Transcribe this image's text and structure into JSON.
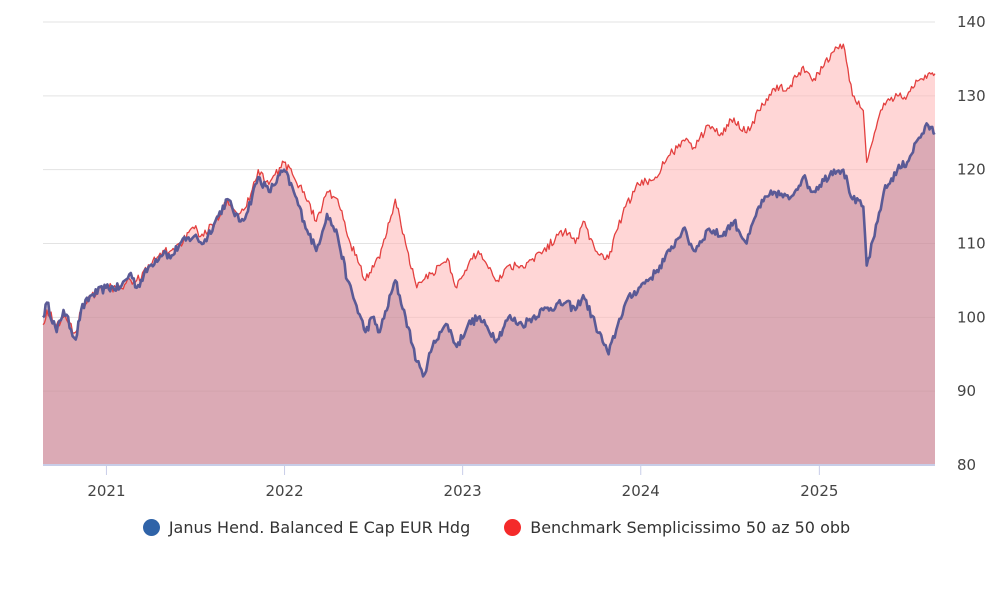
{
  "chart_data": {
    "type": "area",
    "title": "",
    "xlabel": "",
    "ylabel": "",
    "x_range": [
      "2020-08-24",
      "2025-08-26"
    ],
    "ylim": [
      80,
      140
    ],
    "y_ticks": [
      80,
      90,
      100,
      110,
      120,
      130,
      140
    ],
    "x_ticks": [
      {
        "label": "2021",
        "date": "2021-01-01"
      },
      {
        "label": "2022",
        "date": "2022-01-01"
      },
      {
        "label": "2023",
        "date": "2023-01-01"
      },
      {
        "label": "2024",
        "date": "2024-01-01"
      },
      {
        "label": "2025",
        "date": "2025-01-01"
      }
    ],
    "y_axis_side": "right",
    "grid": true,
    "legend_position": "bottom",
    "series": [
      {
        "name": "Janus Hend. Balanced E Cap EUR Hdg",
        "color": "#2f63a8",
        "line_color": "#5a5a96",
        "points": [
          [
            "2020-08-24",
            100
          ],
          [
            "2020-09-01",
            102
          ],
          [
            "2020-09-21",
            98
          ],
          [
            "2020-10-05",
            101
          ],
          [
            "2020-10-30",
            97
          ],
          [
            "2020-11-10",
            101
          ],
          [
            "2020-12-01",
            103
          ],
          [
            "2020-12-31",
            104
          ],
          [
            "2021-01-29",
            104
          ],
          [
            "2021-02-20",
            106
          ],
          [
            "2021-03-04",
            104
          ],
          [
            "2021-03-31",
            107
          ],
          [
            "2021-04-30",
            109
          ],
          [
            "2021-05-12",
            108
          ],
          [
            "2021-06-01",
            110
          ],
          [
            "2021-06-30",
            111
          ],
          [
            "2021-07-19",
            110
          ],
          [
            "2021-08-12",
            113
          ],
          [
            "2021-09-06",
            116
          ],
          [
            "2021-09-30",
            113
          ],
          [
            "2021-10-15",
            114
          ],
          [
            "2021-11-08",
            119
          ],
          [
            "2021-11-30",
            117
          ],
          [
            "2021-12-31",
            120
          ],
          [
            "2022-01-20",
            117
          ],
          [
            "2022-02-10",
            113
          ],
          [
            "2022-03-07",
            109
          ],
          [
            "2022-03-29",
            114
          ],
          [
            "2022-04-20",
            111
          ],
          [
            "2022-05-10",
            105
          ],
          [
            "2022-06-16",
            98
          ],
          [
            "2022-06-30",
            100
          ],
          [
            "2022-07-15",
            98
          ],
          [
            "2022-08-16",
            105
          ],
          [
            "2022-09-06",
            100
          ],
          [
            "2022-09-29",
            94
          ],
          [
            "2022-10-12",
            92
          ],
          [
            "2022-10-31",
            96
          ],
          [
            "2022-11-15",
            98
          ],
          [
            "2022-12-01",
            99
          ],
          [
            "2022-12-20",
            96
          ],
          [
            "2023-01-12",
            99
          ],
          [
            "2023-02-02",
            100
          ],
          [
            "2023-03-13",
            97
          ],
          [
            "2023-04-05",
            100
          ],
          [
            "2023-05-03",
            99
          ],
          [
            "2023-06-15",
            101
          ],
          [
            "2023-07-31",
            102
          ],
          [
            "2023-08-20",
            101
          ],
          [
            "2023-09-05",
            103
          ],
          [
            "2023-09-30",
            99
          ],
          [
            "2023-10-27",
            95
          ],
          [
            "2023-11-15",
            99
          ],
          [
            "2023-12-01",
            102
          ],
          [
            "2023-12-28",
            104
          ],
          [
            "2024-01-31",
            106
          ],
          [
            "2024-03-01",
            109
          ],
          [
            "2024-03-28",
            112
          ],
          [
            "2024-04-19",
            109
          ],
          [
            "2024-05-20",
            112
          ],
          [
            "2024-06-14",
            111
          ],
          [
            "2024-07-10",
            113
          ],
          [
            "2024-08-05",
            110
          ],
          [
            "2024-08-30",
            115
          ],
          [
            "2024-09-30",
            117
          ],
          [
            "2024-10-31",
            116
          ],
          [
            "2024-11-29",
            119
          ],
          [
            "2024-12-18",
            117
          ],
          [
            "2025-01-31",
            120
          ],
          [
            "2025-02-19",
            120
          ],
          [
            "2025-03-10",
            116
          ],
          [
            "2025-04-01",
            115
          ],
          [
            "2025-04-08",
            107
          ],
          [
            "2025-04-24",
            111
          ],
          [
            "2025-05-13",
            117
          ],
          [
            "2025-06-10",
            120
          ],
          [
            "2025-06-30",
            121
          ],
          [
            "2025-07-21",
            124
          ],
          [
            "2025-08-12",
            126
          ],
          [
            "2025-08-26",
            125
          ]
        ]
      },
      {
        "name": "Benchmark Semplicissimo 50 az 50 obb",
        "color": "#f42a2a",
        "line_color": "#e3403f",
        "points": [
          [
            "2020-08-24",
            99
          ],
          [
            "2020-09-01",
            101
          ],
          [
            "2020-09-21",
            99
          ],
          [
            "2020-10-05",
            100
          ],
          [
            "2020-10-30",
            98
          ],
          [
            "2020-11-10",
            101
          ],
          [
            "2020-12-01",
            103
          ],
          [
            "2020-12-31",
            104
          ],
          [
            "2021-01-29",
            104
          ],
          [
            "2021-02-20",
            105
          ],
          [
            "2021-03-04",
            105
          ],
          [
            "2021-03-31",
            107
          ],
          [
            "2021-04-30",
            109
          ],
          [
            "2021-05-12",
            109
          ],
          [
            "2021-06-01",
            110
          ],
          [
            "2021-06-30",
            112
          ],
          [
            "2021-07-19",
            111
          ],
          [
            "2021-08-12",
            113
          ],
          [
            "2021-09-06",
            116
          ],
          [
            "2021-09-30",
            114
          ],
          [
            "2021-10-15",
            115
          ],
          [
            "2021-11-08",
            120
          ],
          [
            "2021-11-30",
            118
          ],
          [
            "2021-12-31",
            121
          ],
          [
            "2022-01-20",
            119
          ],
          [
            "2022-02-10",
            117
          ],
          [
            "2022-03-07",
            113
          ],
          [
            "2022-03-29",
            117
          ],
          [
            "2022-04-20",
            116
          ],
          [
            "2022-05-10",
            111
          ],
          [
            "2022-06-16",
            105
          ],
          [
            "2022-06-30",
            107
          ],
          [
            "2022-07-15",
            108
          ],
          [
            "2022-08-16",
            116
          ],
          [
            "2022-09-06",
            110
          ],
          [
            "2022-09-29",
            104
          ],
          [
            "2022-10-12",
            105
          ],
          [
            "2022-10-31",
            106
          ],
          [
            "2022-11-15",
            107
          ],
          [
            "2022-12-01",
            108
          ],
          [
            "2022-12-20",
            104
          ],
          [
            "2023-01-12",
            107
          ],
          [
            "2023-02-02",
            109
          ],
          [
            "2023-03-13",
            105
          ],
          [
            "2023-04-05",
            107
          ],
          [
            "2023-05-03",
            107
          ],
          [
            "2023-06-15",
            109
          ],
          [
            "2023-07-31",
            112
          ],
          [
            "2023-08-20",
            110
          ],
          [
            "2023-09-05",
            113
          ],
          [
            "2023-09-30",
            109
          ],
          [
            "2023-10-27",
            108
          ],
          [
            "2023-11-15",
            112
          ],
          [
            "2023-12-01",
            115
          ],
          [
            "2023-12-28",
            118
          ],
          [
            "2024-01-31",
            119
          ],
          [
            "2024-03-01",
            122
          ],
          [
            "2024-03-28",
            124
          ],
          [
            "2024-04-19",
            123
          ],
          [
            "2024-05-20",
            126
          ],
          [
            "2024-06-14",
            125
          ],
          [
            "2024-07-10",
            127
          ],
          [
            "2024-08-05",
            125
          ],
          [
            "2024-08-30",
            128
          ],
          [
            "2024-09-30",
            131
          ],
          [
            "2024-10-31",
            131
          ],
          [
            "2024-11-29",
            134
          ],
          [
            "2024-12-18",
            132
          ],
          [
            "2025-01-31",
            136
          ],
          [
            "2025-02-19",
            137
          ],
          [
            "2025-03-10",
            130
          ],
          [
            "2025-04-01",
            128
          ],
          [
            "2025-04-08",
            121
          ],
          [
            "2025-04-24",
            125
          ],
          [
            "2025-05-13",
            129
          ],
          [
            "2025-06-10",
            130
          ],
          [
            "2025-06-30",
            130
          ],
          [
            "2025-07-21",
            132
          ],
          [
            "2025-08-12",
            133
          ],
          [
            "2025-08-26",
            133
          ]
        ]
      }
    ]
  }
}
